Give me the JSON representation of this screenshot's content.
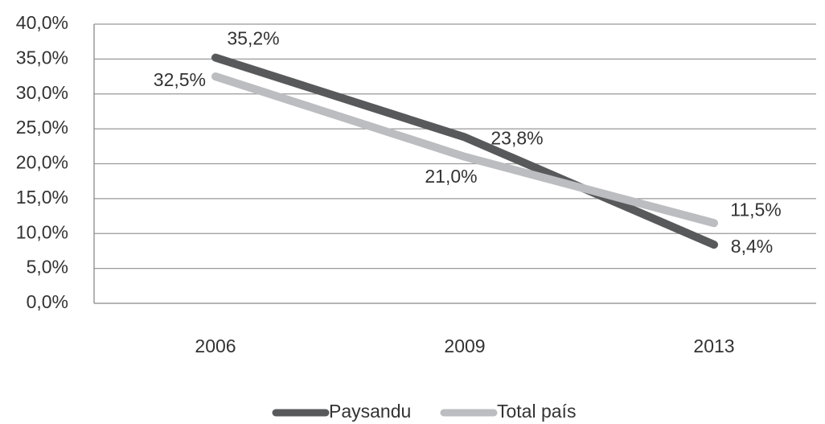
{
  "chart_data": {
    "type": "line",
    "categories": [
      "2006",
      "2009",
      "2013"
    ],
    "series": [
      {
        "name": "Paysandu",
        "color": "#58595b",
        "values": [
          35.2,
          23.8,
          8.4
        ],
        "value_labels": [
          "35,2%",
          "23,8%",
          "8,4%"
        ]
      },
      {
        "name": "Total país",
        "color": "#bcbdc0",
        "values": [
          32.5,
          21.0,
          11.5
        ],
        "value_labels": [
          "32,5%",
          "21,0%",
          "11,5%"
        ]
      }
    ],
    "ylim": [
      0,
      40
    ],
    "yticks": [
      {
        "value": 0,
        "label": "0,0%"
      },
      {
        "value": 5,
        "label": "5,0%"
      },
      {
        "value": 10,
        "label": "10,0%"
      },
      {
        "value": 15,
        "label": "15,0%"
      },
      {
        "value": 20,
        "label": "20,0%"
      },
      {
        "value": 25,
        "label": "25,0%"
      },
      {
        "value": 30,
        "label": "30,0%"
      },
      {
        "value": 35,
        "label": "35,0%"
      },
      {
        "value": 40,
        "label": "40,0%"
      }
    ],
    "grid": true,
    "legend": "bottom"
  }
}
